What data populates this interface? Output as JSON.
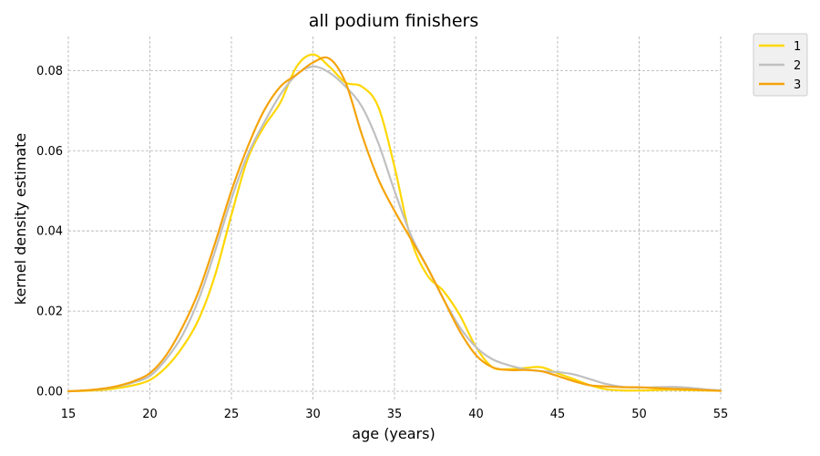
{
  "chart_data": {
    "type": "line",
    "title": "all podium finishers",
    "xlabel": "age (years)",
    "ylabel": "kernel density estimate",
    "xlim": [
      15,
      55
    ],
    "ylim": [
      -0.0025,
      0.0885
    ],
    "x_ticks": [
      "15",
      "20",
      "25",
      "30",
      "35",
      "40",
      "45",
      "50",
      "55"
    ],
    "y_ticks": [
      "0.00",
      "0.02",
      "0.04",
      "0.06",
      "0.08"
    ],
    "grid": true,
    "legend_position": "outside-top-right",
    "series": [
      {
        "name": "1",
        "color": "#FFD700",
        "x": [
          15,
          16,
          17,
          18,
          19,
          20,
          21,
          22,
          23,
          24,
          25,
          26,
          27,
          28,
          29,
          30,
          31,
          32,
          33,
          34,
          35,
          36,
          37,
          38,
          39,
          40,
          41,
          42,
          43,
          44,
          45,
          46,
          47,
          48,
          49,
          50,
          51,
          52,
          53,
          54,
          55
        ],
        "values": [
          0.0,
          0.0001,
          0.0003,
          0.0008,
          0.0015,
          0.0028,
          0.006,
          0.011,
          0.018,
          0.029,
          0.044,
          0.058,
          0.066,
          0.072,
          0.081,
          0.084,
          0.081,
          0.077,
          0.076,
          0.071,
          0.056,
          0.038,
          0.029,
          0.025,
          0.019,
          0.011,
          0.006,
          0.0055,
          0.0058,
          0.006,
          0.0045,
          0.003,
          0.0015,
          0.0005,
          0.0002,
          0.0002,
          0.0003,
          0.0004,
          0.0003,
          0.0002,
          0.0001
        ]
      },
      {
        "name": "2",
        "color": "#C0C0C0",
        "x": [
          15,
          16,
          17,
          18,
          19,
          20,
          21,
          22,
          23,
          24,
          25,
          26,
          27,
          28,
          29,
          30,
          31,
          32,
          33,
          34,
          35,
          36,
          37,
          38,
          39,
          40,
          41,
          42,
          43,
          44,
          45,
          46,
          47,
          48,
          49,
          50,
          51,
          52,
          53,
          54,
          55
        ],
        "values": [
          0.0,
          0.0002,
          0.0005,
          0.0012,
          0.0022,
          0.0038,
          0.008,
          0.014,
          0.023,
          0.035,
          0.048,
          0.059,
          0.067,
          0.074,
          0.079,
          0.081,
          0.0795,
          0.076,
          0.071,
          0.062,
          0.05,
          0.039,
          0.031,
          0.023,
          0.016,
          0.011,
          0.008,
          0.0065,
          0.0055,
          0.005,
          0.0048,
          0.0042,
          0.003,
          0.0018,
          0.0011,
          0.0009,
          0.001,
          0.0011,
          0.0009,
          0.0005,
          0.0002
        ]
      },
      {
        "name": "3",
        "color": "#F5A30A",
        "x": [
          15,
          16,
          17,
          18,
          19,
          20,
          21,
          22,
          23,
          24,
          25,
          26,
          27,
          28,
          29,
          30,
          31,
          32,
          33,
          34,
          35,
          36,
          37,
          38,
          39,
          40,
          41,
          42,
          43,
          44,
          45,
          46,
          47,
          48,
          49,
          50,
          51,
          52,
          53,
          54,
          55
        ],
        "values": [
          0.0,
          0.0002,
          0.0006,
          0.0013,
          0.0025,
          0.0045,
          0.009,
          0.016,
          0.025,
          0.037,
          0.05,
          0.061,
          0.07,
          0.076,
          0.079,
          0.082,
          0.083,
          0.077,
          0.064,
          0.053,
          0.045,
          0.038,
          0.031,
          0.023,
          0.015,
          0.009,
          0.006,
          0.0053,
          0.0053,
          0.005,
          0.0038,
          0.0025,
          0.0015,
          0.0012,
          0.001,
          0.001,
          0.0008,
          0.0006,
          0.0005,
          0.0003,
          0.0001
        ]
      }
    ]
  }
}
